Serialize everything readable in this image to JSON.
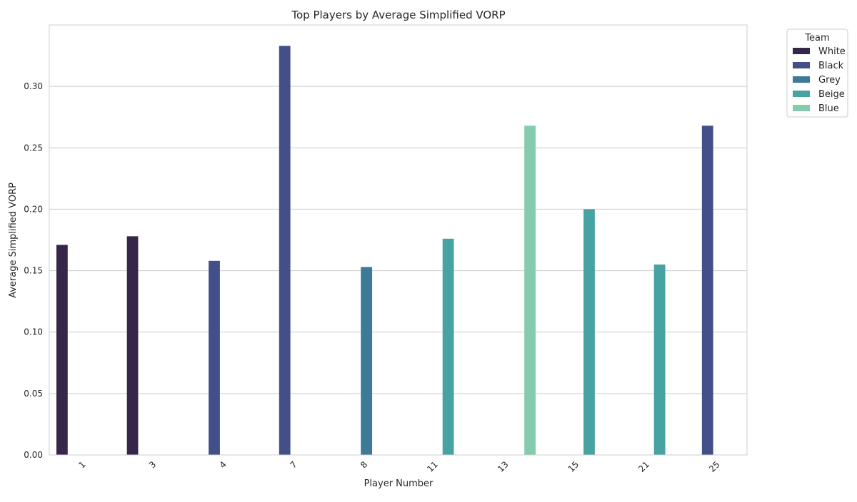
{
  "chart_data": {
    "type": "bar",
    "title": "Top Players by Average Simplified VORP",
    "xlabel": "Player Number",
    "ylabel": "Average Simplified VORP",
    "ylim": [
      0,
      0.35
    ],
    "yticks": [
      "0.00",
      "0.05",
      "0.10",
      "0.15",
      "0.20",
      "0.25",
      "0.30"
    ],
    "grid": true,
    "legend_placement": "outside-top-right",
    "legend_title": "Team",
    "categories": [
      "1",
      "3",
      "4",
      "7",
      "8",
      "11",
      "13",
      "15",
      "21",
      "25"
    ],
    "series": [
      {
        "name": "White",
        "color": "#35264a",
        "values": [
          0.171,
          0.178,
          null,
          null,
          null,
          null,
          null,
          null,
          null,
          null
        ]
      },
      {
        "name": "Black",
        "color": "#434f89",
        "values": [
          null,
          null,
          0.158,
          0.333,
          null,
          null,
          null,
          null,
          null,
          0.268
        ]
      },
      {
        "name": "Grey",
        "color": "#3d7a98",
        "values": [
          null,
          null,
          null,
          null,
          0.153,
          null,
          null,
          null,
          null,
          null
        ]
      },
      {
        "name": "Beige",
        "color": "#46a3a2",
        "values": [
          null,
          null,
          null,
          null,
          null,
          0.176,
          null,
          0.2,
          0.155,
          null
        ]
      },
      {
        "name": "Blue",
        "color": "#84ccad",
        "values": [
          null,
          null,
          null,
          null,
          null,
          null,
          0.268,
          null,
          null,
          null
        ]
      }
    ]
  }
}
